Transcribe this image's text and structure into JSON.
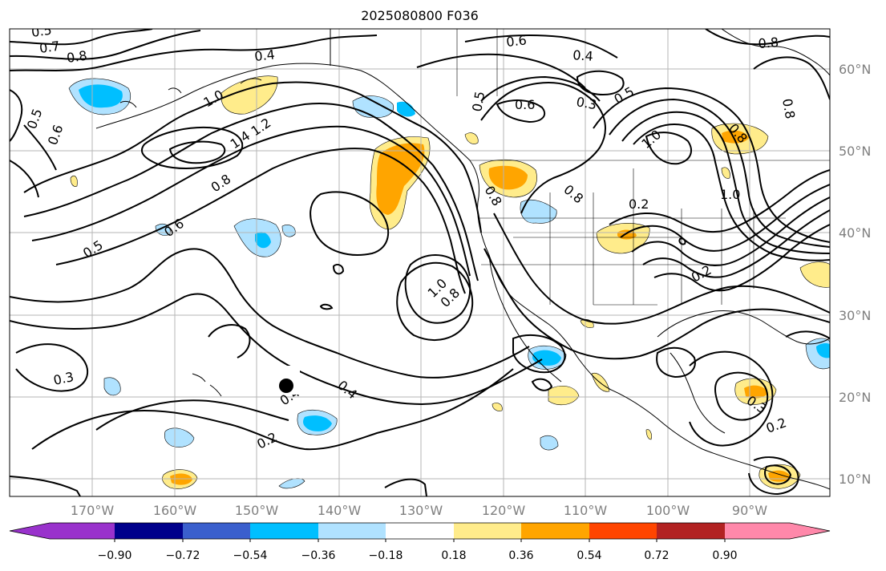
{
  "title": "2025080800 F036",
  "lat_labels": [
    "60°N",
    "50°N",
    "40°N",
    "30°N",
    "20°N",
    "10°N"
  ],
  "lon_labels": [
    "170°W",
    "160°W",
    "150°W",
    "140°W",
    "130°W",
    "120°W",
    "110°W",
    "100°W",
    "90°W"
  ],
  "colorbar": {
    "ticks": [
      "−0.90",
      "−0.72",
      "−0.54",
      "−0.36",
      "−0.18",
      "0.18",
      "0.36",
      "0.54",
      "0.72",
      "0.90"
    ],
    "colors": [
      "#9932cc",
      "#00008b",
      "#3a5fcd",
      "#00bfff",
      "#b0e2ff",
      "#ffffff",
      "#ffec8b",
      "#ffa500",
      "#ff4500",
      "#b22222",
      "#ff88aa"
    ]
  },
  "contour_labels": [
    "0.5",
    "0.7",
    "0.8",
    "0.4",
    "0.6",
    "0.5",
    "1.0",
    "1.4",
    "1.2",
    "0.8",
    "0.6",
    "0.5",
    "0.6",
    "0.5",
    "0.6",
    "0.4",
    "0.3",
    "0.5",
    "0.8",
    "1.0",
    "0.8",
    "1.0",
    "0.8",
    "0.2",
    "0.8",
    "0.2",
    "1.0",
    "0.8",
    "0.3",
    "0.4",
    "0.4",
    "0.2",
    "0.3",
    "0.2",
    "0.8"
  ]
}
